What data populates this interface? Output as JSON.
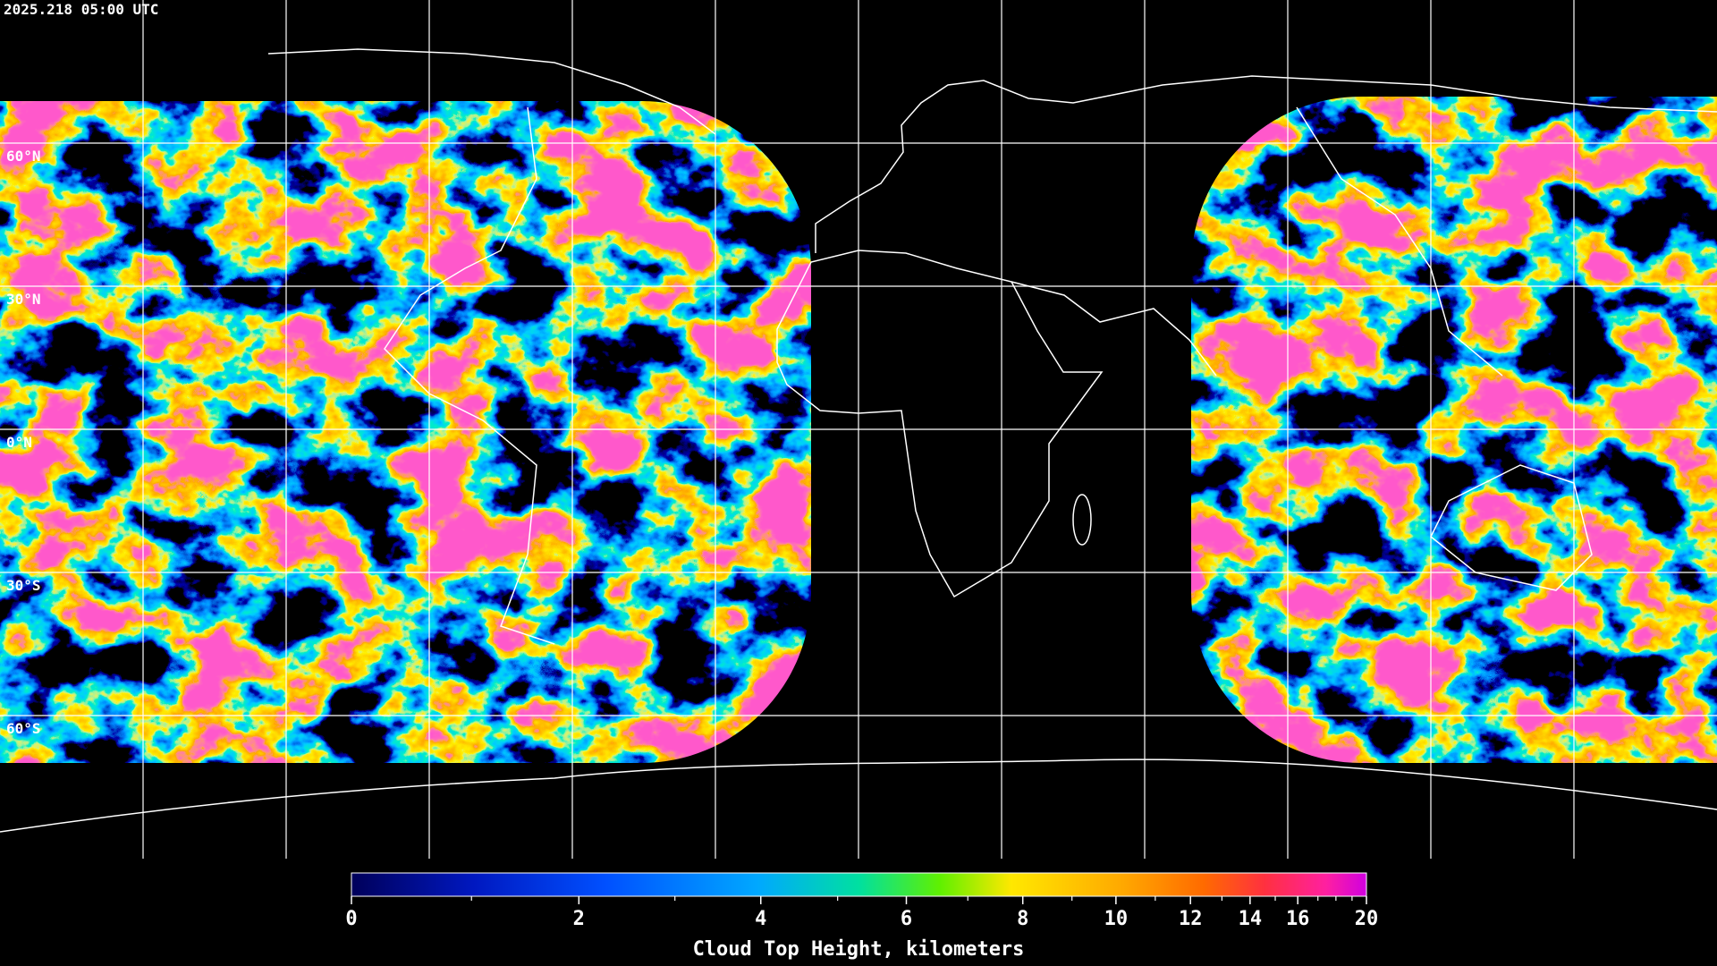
{
  "timestamp": "2025.218 05:00 UTC",
  "latitude_labels": [
    "60°N",
    "30°N",
    "0°N",
    "30°S",
    "60°S"
  ],
  "colorbar": {
    "title": "Cloud Top Height, kilometers",
    "range": [
      0,
      20
    ],
    "ticks": [
      0,
      2,
      4,
      6,
      8,
      10,
      12,
      14,
      16,
      20
    ],
    "minor_ticks": [
      1,
      3,
      5,
      7,
      9,
      11,
      13,
      15,
      17,
      18,
      19
    ]
  }
}
